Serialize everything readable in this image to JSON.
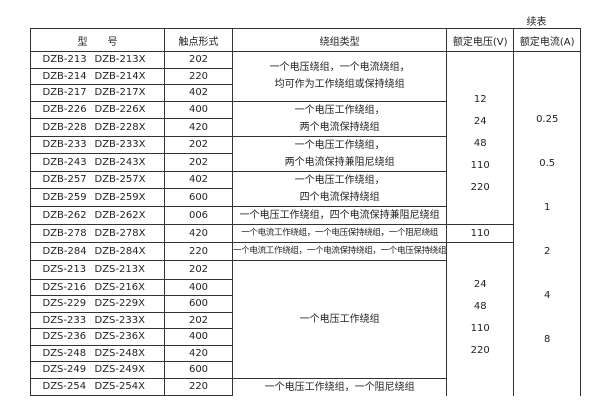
{
  "continued_label": "续表",
  "headers": {
    "model": "型　　号",
    "contact": "触点形式",
    "winding": "绕组类型",
    "voltage": "额定电压(V)",
    "current": "额定电流(A)"
  },
  "rows": [
    {
      "model_a": "DZB-213",
      "model_b": "DZB-213X",
      "contact": "202"
    },
    {
      "model_a": "DZB-214",
      "model_b": "DZB-214X",
      "contact": "220"
    },
    {
      "model_a": "DZB-217",
      "model_b": "DZB-217X",
      "contact": "402"
    },
    {
      "model_a": "DZB-226",
      "model_b": "DZB-226X",
      "contact": "400"
    },
    {
      "model_a": "DZB-228",
      "model_b": "DZB-228X",
      "contact": "420"
    },
    {
      "model_a": "DZB-233",
      "model_b": "DZB-233X",
      "contact": "202"
    },
    {
      "model_a": "DZB-243",
      "model_b": "DZB-243X",
      "contact": "202"
    },
    {
      "model_a": "DZB-257",
      "model_b": "DZB-257X",
      "contact": "402"
    },
    {
      "model_a": "DZB-259",
      "model_b": "DZB-259X",
      "contact": "600"
    },
    {
      "model_a": "DZB-262",
      "model_b": "DZB-262X",
      "contact": "006"
    },
    {
      "model_a": "DZB-278",
      "model_b": "DZB-278X",
      "contact": "420"
    },
    {
      "model_a": "DZB-284",
      "model_b": "DZB-284X",
      "contact": "220"
    },
    {
      "model_a": "DZS-213",
      "model_b": "DZS-213X",
      "contact": "202"
    },
    {
      "model_a": "DZS-216",
      "model_b": "DZS-216X",
      "contact": "400"
    },
    {
      "model_a": "DZS-229",
      "model_b": "DZS-229X",
      "contact": "600"
    },
    {
      "model_a": "DZS-233",
      "model_b": "DZS-233X",
      "contact": "202"
    },
    {
      "model_a": "DZS-236",
      "model_b": "DZS-236X",
      "contact": "400"
    },
    {
      "model_a": "DZS-248",
      "model_b": "DZS-248X",
      "contact": "420"
    },
    {
      "model_a": "DZS-249",
      "model_b": "DZS-249X",
      "contact": "600"
    },
    {
      "model_a": "DZS-254",
      "model_b": "DZS-254X",
      "contact": "220"
    }
  ],
  "windings": [
    [
      "一个电压绕组，一个电流绕组，",
      "均可作为工作绕组或保持绕组"
    ],
    [
      "一个电压工作绕组，",
      "两个电流保持绕组"
    ],
    [
      "一个电压工作绕组，",
      "两个电流保持兼阻尼绕组"
    ],
    [
      "一个电压工作绕组，",
      "四个电流保持绕组"
    ],
    [
      "一个电压工作绕组，四个电流保持兼阻尼绕组"
    ],
    [
      "一个电流工作绕组，一个电压保持绕组，一个阻尼绕组"
    ],
    [
      "一个电流工作绕组，一个电流保持绕组，一个电压保持绕组"
    ],
    [
      "一个电压工作绕组"
    ],
    [
      "一个电压工作绕组，一个阻尼绕组"
    ]
  ],
  "voltage_groups": [
    [
      "12",
      "24",
      "48",
      "110",
      "220"
    ],
    [
      "110"
    ],
    [
      "24",
      "48",
      "110",
      "220"
    ]
  ],
  "currents": [
    "0.25",
    "0.5",
    "1",
    "2",
    "4",
    "8"
  ]
}
